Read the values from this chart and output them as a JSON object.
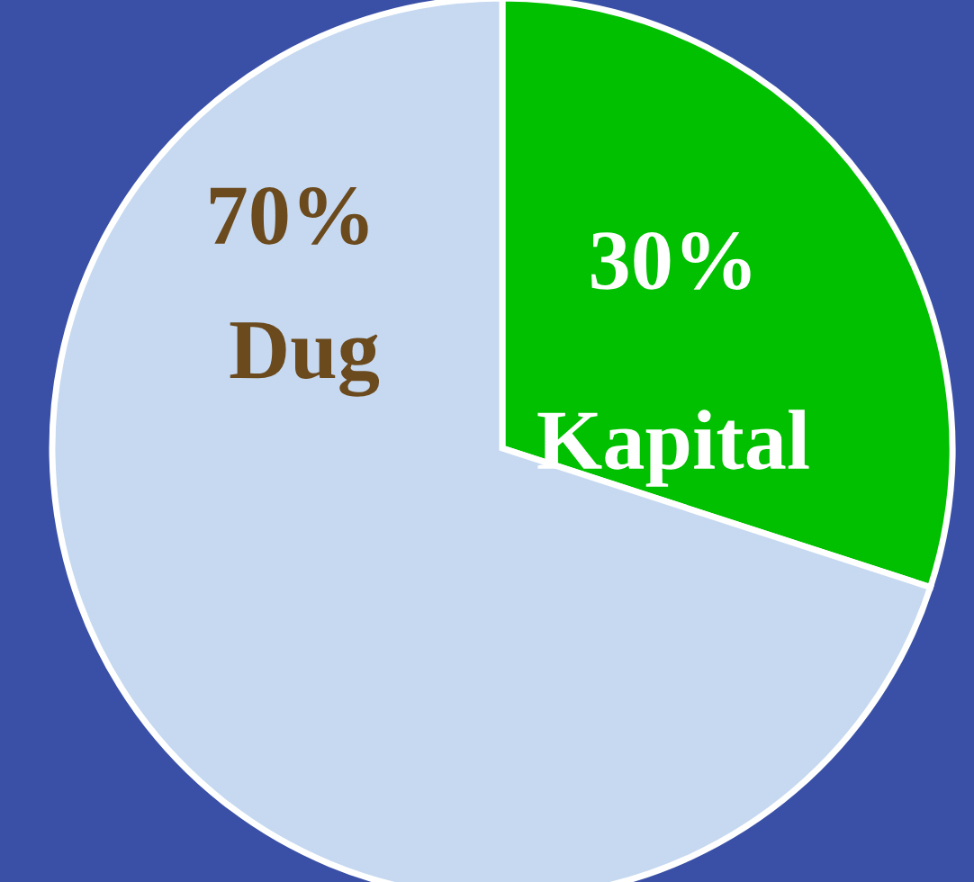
{
  "chart_data": {
    "type": "pie",
    "categories": [
      "Kapital",
      "Dug"
    ],
    "values": [
      30,
      70
    ],
    "value_labels": [
      "30%",
      "70%"
    ],
    "colors": [
      "#00c000",
      "#c6d9f1"
    ],
    "legend": false
  }
}
